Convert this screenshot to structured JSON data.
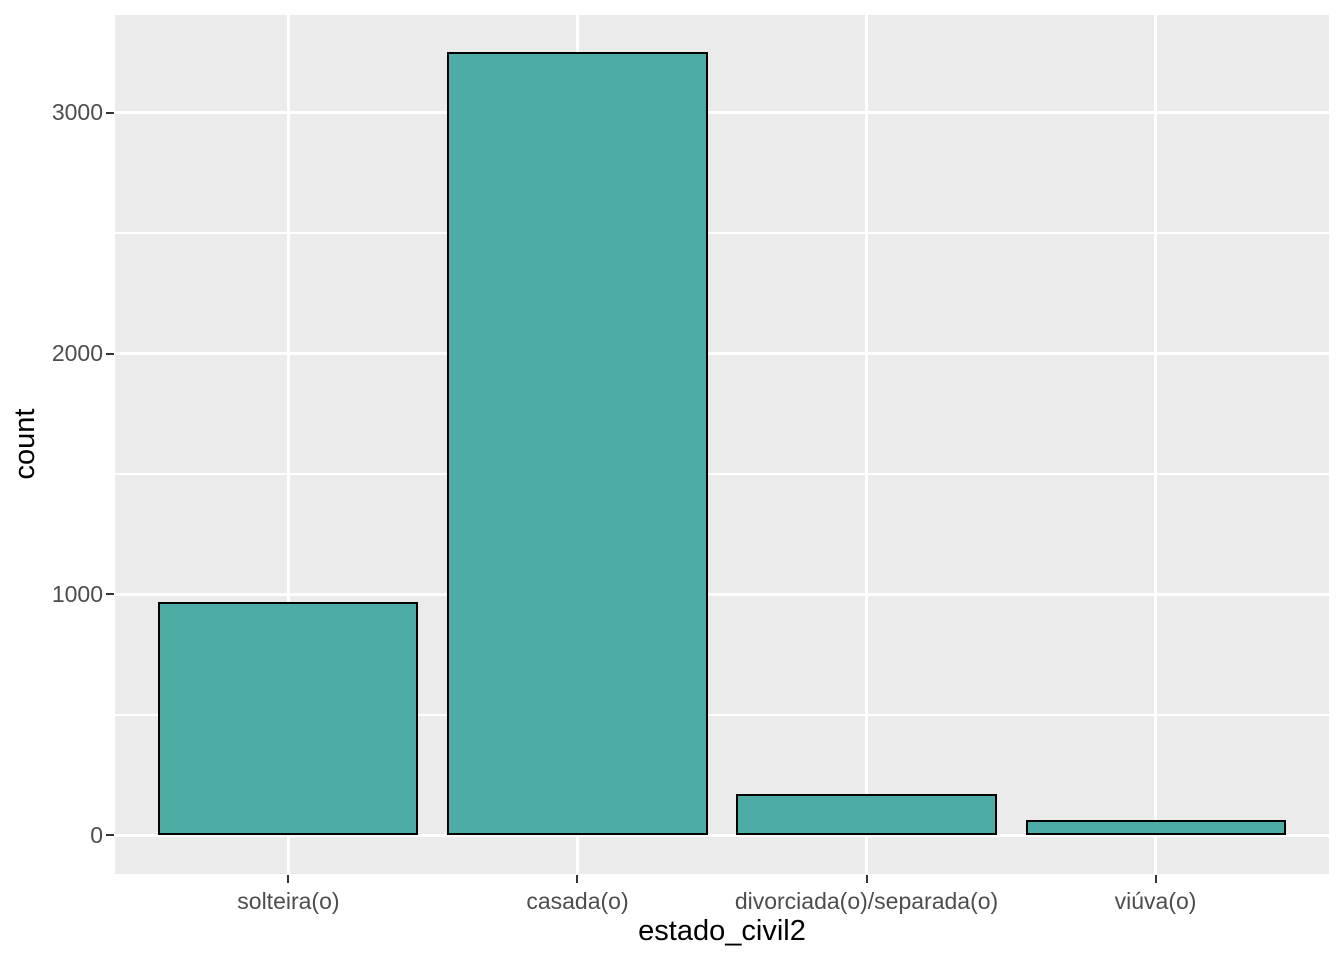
{
  "figure": {
    "background": "#FFFFFF",
    "panel_background": "#EBEBEB",
    "gridline_color": "#FFFFFF",
    "bar_fill": "#4DACA6",
    "bar_stroke": "#000000",
    "tick_color": "#333333",
    "tick_label_color": "#4D4D4D",
    "axis_title_color": "#000000"
  },
  "chart_data": {
    "type": "bar",
    "title": "",
    "xlabel": "estado_civil2",
    "ylabel": "count",
    "categories": [
      "solteira(o)",
      "casada(o)",
      "divorciada(o)/separada(o)",
      "viúva(o)"
    ],
    "values": [
      970,
      3250,
      170,
      65
    ],
    "y_major_ticks": [
      0,
      1000,
      2000,
      3000
    ],
    "y_minor_gridlines": [
      500,
      1500,
      2500
    ],
    "ylim": [
      -160,
      3405
    ],
    "grid": true,
    "legend": "none",
    "style": "ggplot2-grey-theme",
    "bar_relative_width": 0.9
  }
}
